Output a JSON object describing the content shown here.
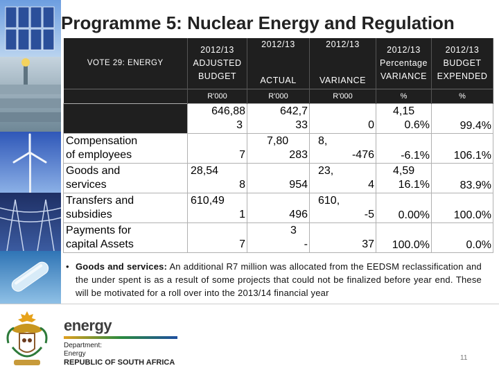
{
  "slide": {
    "title": "Programme 5: Nuclear Energy and Regulation",
    "page_number": "11"
  },
  "table": {
    "vote_label": "VOTE 29: ENERGY",
    "headers": [
      {
        "year": "2012/13",
        "line2": "ADJUSTED",
        "line3": "BUDGET",
        "unit": "R'000"
      },
      {
        "year": "2012/13",
        "line2": "",
        "line3": "ACTUAL",
        "unit": "R'000"
      },
      {
        "year": "2012/13",
        "line2": "",
        "line3": "VARIANCE",
        "unit": "R'000"
      },
      {
        "year": "2012/13",
        "line2": "Percentage",
        "line3": "VARIANCE",
        "unit": "%"
      },
      {
        "year": "2012/13",
        "line2": "BUDGET",
        "line3": "EXPENDED",
        "unit": "%"
      }
    ],
    "total_row": {
      "adjusted_budget": [
        "646,88",
        "3"
      ],
      "actual": [
        "642,7",
        "33"
      ],
      "variance": [
        "",
        "0"
      ],
      "pct_variance": [
        "4,15",
        "0.6%"
      ],
      "budget_expended": "99.4%"
    },
    "rows": [
      {
        "label": [
          "Compensation",
          "of employees"
        ],
        "adjusted_budget": [
          "",
          "7"
        ],
        "actual": [
          "7,80",
          "283"
        ],
        "variance": [
          "8,",
          "-476"
        ],
        "pct_variance": "-6.1%",
        "budget_expended": "106.1%"
      },
      {
        "label": [
          "Goods and",
          "services"
        ],
        "adjusted_budget": [
          "28,54",
          "8"
        ],
        "actual": [
          "",
          "954"
        ],
        "variance": [
          "23,",
          "4"
        ],
        "pct_variance": [
          "4,59",
          "16.1%"
        ],
        "budget_expended": "83.9%"
      },
      {
        "label": [
          "Transfers and",
          "subsidies"
        ],
        "adjusted_budget": [
          "610,49",
          "1"
        ],
        "actual": [
          "",
          "496"
        ],
        "variance": [
          "610,",
          "-5"
        ],
        "pct_variance": "0.00%",
        "budget_expended": "100.0%"
      },
      {
        "label": [
          "Payments for",
          "capital Assets"
        ],
        "adjusted_budget": [
          "",
          "7"
        ],
        "actual": [
          "3",
          "-"
        ],
        "variance": [
          "",
          "37"
        ],
        "pct_variance": "100.0%",
        "budget_expended": "0.0%"
      }
    ]
  },
  "note": {
    "bullet": "•",
    "bold_lead": "Goods and services:",
    "text": " An additional R7 million was allocated from the EEDSM reclassification and the under spent is as a result of some projects that could not be finalized before year end.  These will be motivated for a roll over into the 2013/14 financial year"
  },
  "footer": {
    "brand": "energy",
    "dept_line1": "Department:",
    "dept_line2": "Energy",
    "dept_line3": "REPUBLIC OF SOUTH AFRICA"
  }
}
